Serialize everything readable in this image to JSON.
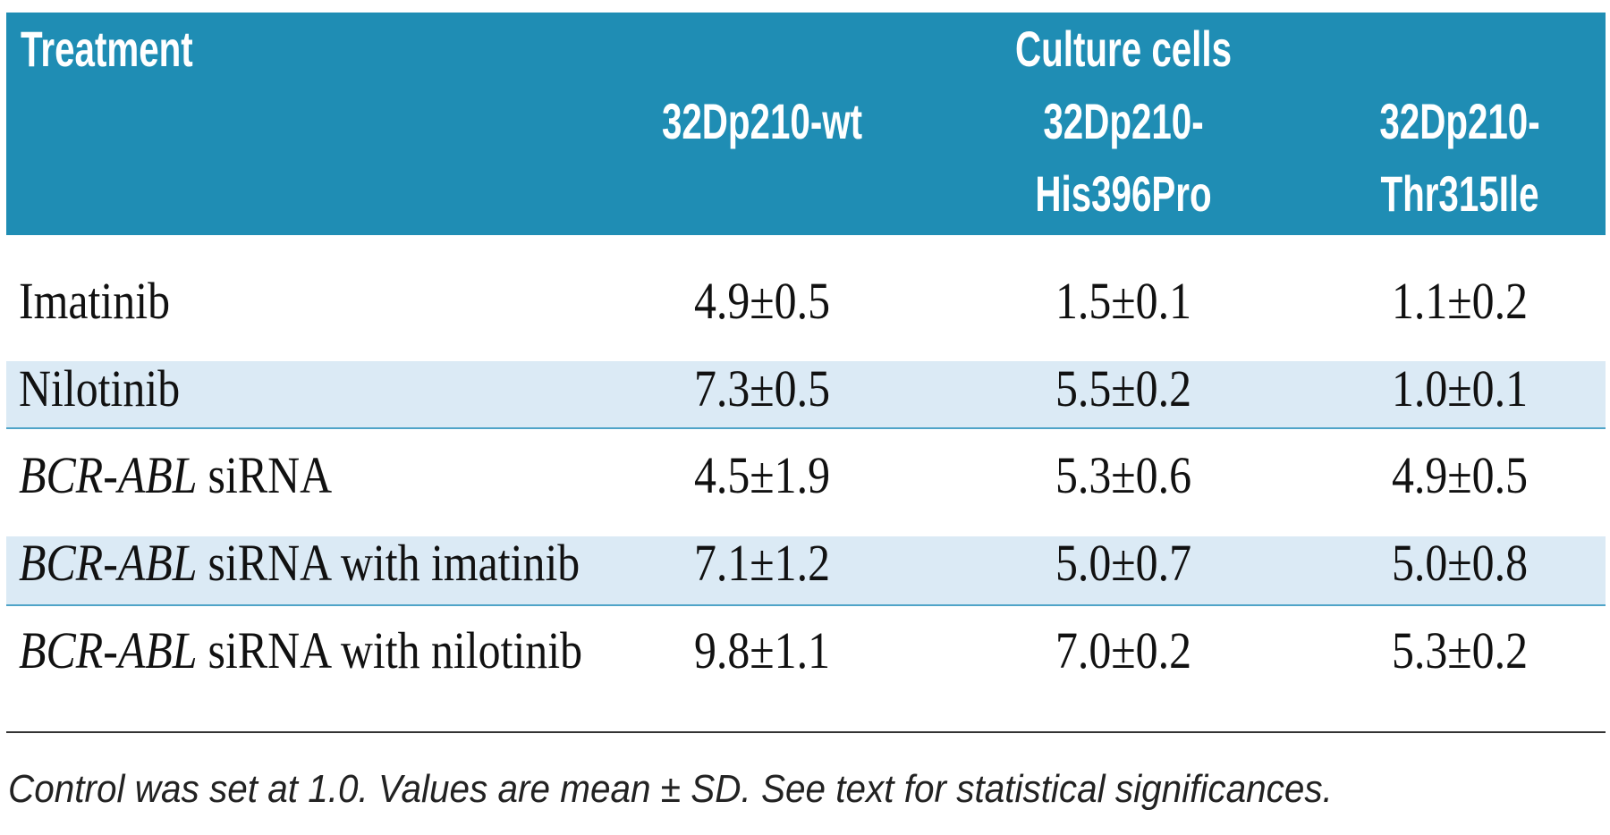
{
  "table": {
    "header": {
      "treatment": "Treatment",
      "group": "Culture cells",
      "columns": [
        [
          "32Dp210-wt"
        ],
        [
          "32Dp210-",
          "His396Pro"
        ],
        [
          "32Dp210-",
          "Thr315Ile"
        ]
      ]
    },
    "rows": [
      {
        "gene": null,
        "treatment": "Imatinib",
        "values": [
          "4.9±0.5",
          "1.5±0.1",
          "1.1±0.2"
        ]
      },
      {
        "gene": null,
        "treatment": "Nilotinib",
        "values": [
          "7.3±0.5",
          "5.5±0.2",
          "1.0±0.1"
        ]
      },
      {
        "gene": "BCR-ABL",
        "treatment": "siRNA",
        "values": [
          "4.5±1.9",
          "5.3±0.6",
          "4.9±0.5"
        ]
      },
      {
        "gene": "BCR-ABL",
        "treatment": "siRNA with imatinib",
        "values": [
          "7.1±1.2",
          "5.0±0.7",
          "5.0±0.8"
        ]
      },
      {
        "gene": "BCR-ABL",
        "treatment": "siRNA with nilotinib",
        "values": [
          "9.8±1.1",
          "7.0±0.2",
          "5.3±0.2"
        ]
      }
    ]
  },
  "footnote": "Control was set at 1.0. Values are mean ± SD. See text for statistical significances."
}
